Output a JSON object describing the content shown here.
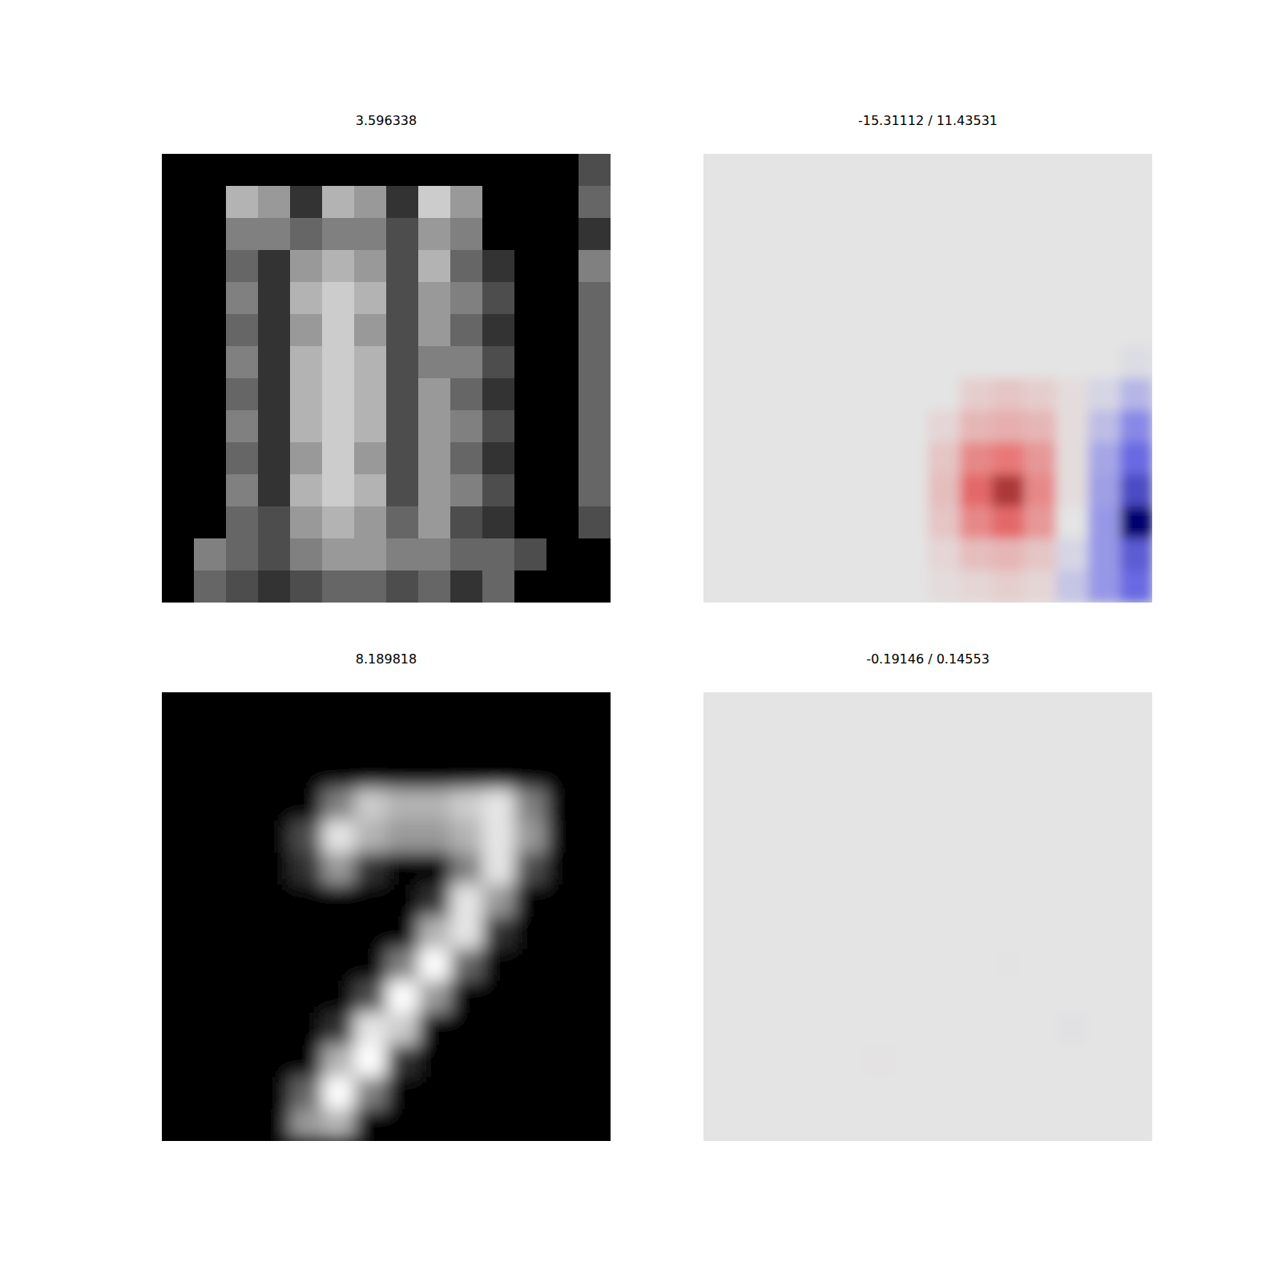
{
  "chart_data": [
    {
      "type": "image",
      "title": "3.596338",
      "color": "gray",
      "zlim": [
        0,
        1
      ],
      "tick_labels": false,
      "cells": [
        [
          0,
          0,
          0,
          0,
          0,
          0,
          0,
          0,
          0,
          0,
          0,
          0,
          0,
          0.3
        ],
        [
          0,
          0,
          0.7,
          0.6,
          0.2,
          0.7,
          0.6,
          0.2,
          0.8,
          0.6,
          0,
          0,
          0,
          0.4
        ],
        [
          0,
          0,
          0.5,
          0.5,
          0.4,
          0.5,
          0.5,
          0.3,
          0.6,
          0.5,
          0,
          0,
          0,
          0.2
        ],
        [
          0,
          0,
          0.4,
          0.2,
          0.6,
          0.7,
          0.6,
          0.3,
          0.7,
          0.4,
          0.2,
          0,
          0,
          0.5
        ],
        [
          0,
          0,
          0.5,
          0.2,
          0.7,
          0.8,
          0.7,
          0.3,
          0.6,
          0.5,
          0.3,
          0,
          0,
          0.4
        ],
        [
          0,
          0,
          0.4,
          0.2,
          0.6,
          0.8,
          0.6,
          0.3,
          0.6,
          0.4,
          0.2,
          0,
          0,
          0.4
        ],
        [
          0,
          0,
          0.5,
          0.2,
          0.7,
          0.8,
          0.7,
          0.3,
          0.5,
          0.5,
          0.3,
          0,
          0,
          0.4
        ],
        [
          0,
          0,
          0.4,
          0.2,
          0.7,
          0.8,
          0.7,
          0.3,
          0.6,
          0.4,
          0.2,
          0,
          0,
          0.4
        ],
        [
          0,
          0,
          0.5,
          0.2,
          0.7,
          0.8,
          0.7,
          0.3,
          0.6,
          0.5,
          0.3,
          0,
          0,
          0.4
        ],
        [
          0,
          0,
          0.4,
          0.2,
          0.6,
          0.8,
          0.6,
          0.3,
          0.6,
          0.4,
          0.2,
          0,
          0,
          0.4
        ],
        [
          0,
          0,
          0.5,
          0.2,
          0.7,
          0.8,
          0.7,
          0.3,
          0.6,
          0.5,
          0.3,
          0,
          0,
          0.4
        ],
        [
          0,
          0,
          0.4,
          0.3,
          0.6,
          0.7,
          0.6,
          0.4,
          0.6,
          0.3,
          0.2,
          0,
          0,
          0.3
        ],
        [
          0,
          0.5,
          0.4,
          0.3,
          0.5,
          0.6,
          0.6,
          0.5,
          0.5,
          0.4,
          0.4,
          0.3,
          0,
          0
        ],
        [
          0,
          0.4,
          0.3,
          0.2,
          0.3,
          0.4,
          0.4,
          0.3,
          0.4,
          0.2,
          0.4,
          0,
          0,
          0
        ]
      ]
    },
    {
      "type": "heatmap",
      "title": "-15.31112 / 11.43531",
      "color": "bwr",
      "zlim": [
        -15.31112,
        15.31112
      ],
      "tick_labels": false,
      "cells": [
        [
          0,
          0,
          0,
          0,
          0,
          0,
          0,
          0,
          0,
          0,
          0,
          0,
          0,
          0
        ],
        [
          0,
          0,
          0,
          0,
          0,
          0,
          0,
          0,
          0,
          0,
          0,
          0,
          0,
          0
        ],
        [
          0,
          0,
          0,
          0,
          0,
          0,
          0,
          0,
          0,
          0,
          0,
          0,
          0,
          0
        ],
        [
          0,
          0,
          0,
          0,
          0,
          0,
          0,
          0,
          0,
          0,
          0,
          0,
          0,
          0
        ],
        [
          0,
          0,
          0,
          0,
          0,
          0,
          0,
          0,
          0,
          0,
          0,
          0,
          0,
          0
        ],
        [
          0,
          0,
          0,
          0,
          0,
          0,
          0,
          0,
          0,
          0,
          0,
          0,
          0,
          0
        ],
        [
          0,
          0,
          0,
          0,
          0,
          0,
          0,
          0,
          0,
          0,
          0,
          0,
          0,
          -0.5
        ],
        [
          0,
          0,
          0,
          0,
          0,
          0,
          0,
          0,
          1.5,
          2,
          1.5,
          0.5,
          -1,
          -3
        ],
        [
          0,
          0,
          0,
          0,
          0,
          0,
          0,
          1,
          3,
          3.5,
          3,
          0.5,
          -2.5,
          -6
        ],
        [
          0,
          0,
          0,
          0,
          0,
          0,
          0,
          2,
          6,
          7,
          5,
          0.5,
          -4,
          -8
        ],
        [
          0,
          0,
          0,
          0,
          0,
          0,
          0,
          2.5,
          8,
          11.43531,
          6,
          0.5,
          -4.5,
          -10
        ],
        [
          0,
          0,
          0,
          0,
          0,
          0,
          0,
          2,
          6,
          8,
          5,
          0,
          -5,
          -15.31112
        ],
        [
          0,
          0,
          0,
          0,
          0,
          0,
          0,
          1,
          2.5,
          3,
          2,
          -1,
          -5,
          -9
        ],
        [
          0,
          0,
          0,
          0,
          0,
          0,
          0,
          0.5,
          1,
          1.5,
          1,
          -2,
          -5,
          -8
        ]
      ]
    },
    {
      "type": "image",
      "title": "8.189818",
      "color": "gray",
      "zlim": [
        0,
        1
      ],
      "tick_labels": false,
      "cells": [
        [
          0,
          0,
          0,
          0,
          0,
          0,
          0,
          0,
          0,
          0,
          0,
          0,
          0,
          0
        ],
        [
          0,
          0,
          0,
          0,
          0,
          0,
          0,
          0,
          0,
          0,
          0,
          0,
          0,
          0
        ],
        [
          0,
          0,
          0,
          0,
          0,
          0,
          0,
          0,
          0,
          0,
          0,
          0,
          0,
          0
        ],
        [
          0,
          0,
          0,
          0,
          0,
          0.5,
          0.8,
          0.7,
          0.7,
          0.8,
          0.9,
          0.5,
          0,
          0
        ],
        [
          0,
          0,
          0,
          0,
          0.3,
          0.9,
          0.7,
          0.6,
          0.6,
          0.7,
          0.9,
          0.6,
          0,
          0
        ],
        [
          0,
          0,
          0,
          0,
          0.2,
          0.6,
          0.2,
          0,
          0,
          0.5,
          0.9,
          0.3,
          0,
          0
        ],
        [
          0,
          0,
          0,
          0,
          0,
          0,
          0,
          0,
          0.2,
          0.9,
          0.6,
          0,
          0,
          0
        ],
        [
          0,
          0,
          0,
          0,
          0,
          0,
          0,
          0,
          0.7,
          0.9,
          0.2,
          0,
          0,
          0
        ],
        [
          0,
          0,
          0,
          0,
          0,
          0,
          0,
          0.5,
          1,
          0.4,
          0,
          0,
          0,
          0
        ],
        [
          0,
          0,
          0,
          0,
          0,
          0,
          0.3,
          1,
          0.6,
          0,
          0,
          0,
          0,
          0
        ],
        [
          0,
          0,
          0,
          0,
          0,
          0.2,
          0.9,
          0.8,
          0,
          0,
          0,
          0,
          0,
          0
        ],
        [
          0,
          0,
          0,
          0,
          0,
          0.7,
          1,
          0.2,
          0,
          0,
          0,
          0,
          0,
          0
        ],
        [
          0,
          0,
          0,
          0,
          0.4,
          1,
          0.5,
          0,
          0,
          0,
          0,
          0,
          0,
          0
        ],
        [
          0,
          0,
          0,
          0,
          0.6,
          0.7,
          0,
          0,
          0,
          0,
          0,
          0,
          0,
          0
        ]
      ]
    },
    {
      "type": "heatmap",
      "title": "-0.19146 / 0.14553",
      "color": "bwr",
      "zlim": [
        -15.31112,
        15.31112
      ],
      "tick_labels": false,
      "cells": [
        [
          0,
          0,
          0,
          0,
          0,
          0,
          0,
          0,
          0,
          0,
          0,
          0,
          0,
          0
        ],
        [
          0,
          0,
          0,
          0,
          0,
          0,
          0,
          0,
          0,
          0,
          0,
          0,
          0,
          0
        ],
        [
          0,
          0,
          0,
          0,
          0,
          0,
          0,
          0,
          0,
          0,
          0,
          0,
          0,
          0
        ],
        [
          0,
          0,
          0,
          0,
          0,
          0,
          0,
          0,
          0,
          0,
          0,
          0,
          0,
          0
        ],
        [
          0,
          0,
          0,
          0,
          0,
          0,
          0,
          0,
          0,
          0,
          0,
          0,
          0,
          0
        ],
        [
          0,
          0,
          0,
          0,
          0,
          0,
          0,
          0,
          0,
          0,
          0,
          0,
          0,
          0
        ],
        [
          0,
          0,
          0,
          0,
          0,
          0,
          0,
          0,
          0,
          0,
          0,
          0,
          0,
          0
        ],
        [
          0,
          0,
          0,
          0,
          0,
          0,
          0,
          0,
          0,
          0,
          0,
          0,
          0,
          0
        ],
        [
          0,
          0,
          0,
          0,
          0,
          0,
          0,
          0,
          0,
          0.05,
          0,
          0,
          0,
          0
        ],
        [
          0,
          0,
          0,
          0,
          0,
          0,
          0,
          0,
          0,
          0,
          0,
          0,
          0,
          0
        ],
        [
          0,
          0,
          0,
          0,
          0,
          0,
          0,
          0,
          0,
          0,
          0,
          -0.19146,
          0,
          0
        ],
        [
          0,
          0,
          0,
          0,
          0,
          0.14553,
          0,
          0,
          0,
          0,
          0,
          0,
          0,
          0
        ],
        [
          0,
          0,
          0,
          0,
          0,
          0,
          0,
          0,
          0,
          0,
          0,
          0,
          0,
          0
        ],
        [
          0,
          0,
          0,
          0,
          0,
          0,
          0,
          0,
          0,
          0,
          0,
          0,
          0,
          0
        ]
      ]
    }
  ]
}
